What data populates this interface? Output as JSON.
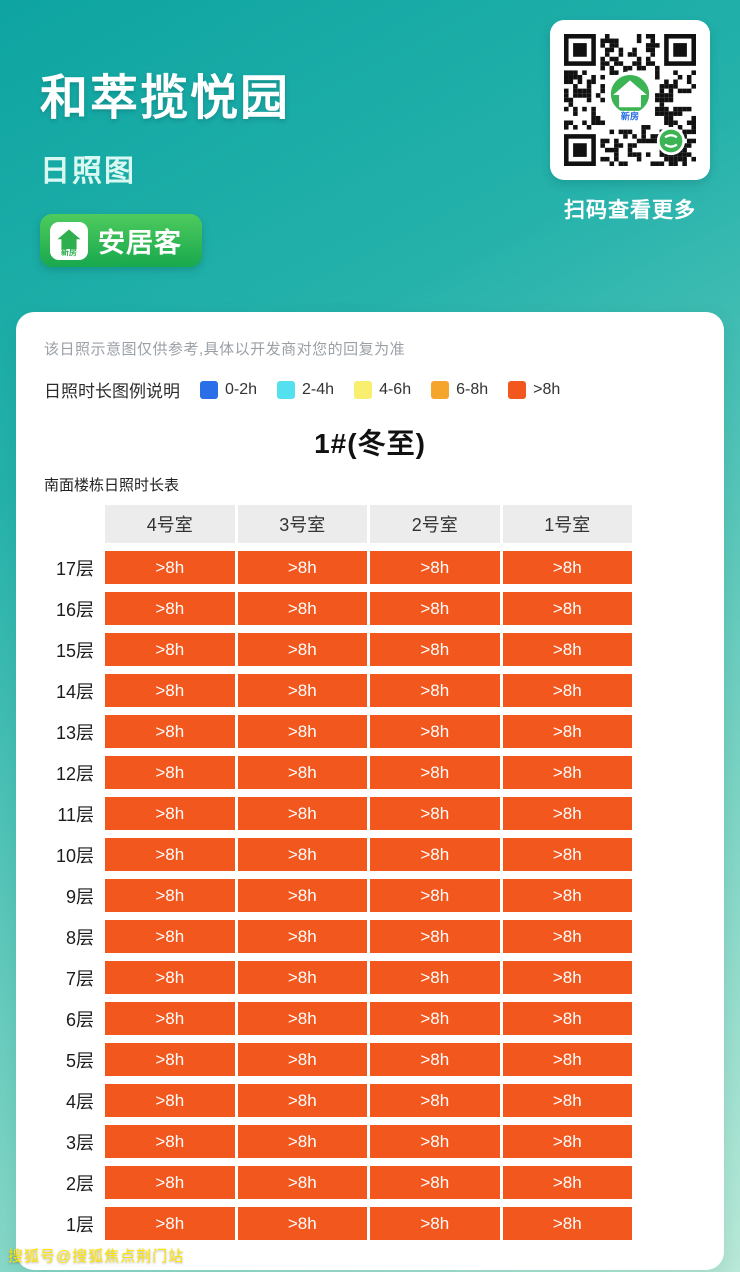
{
  "header": {
    "title": "和萃揽悦园",
    "subtitle": "日照图",
    "brand_name": "安居客",
    "brand_icon_label": "新房",
    "qr_caption": "扫码查看更多"
  },
  "card": {
    "disclaimer": "该日照示意图仅供参考,具体以开发商对您的回复为准",
    "legend_title": "日照时长图例说明"
  },
  "chart_data": {
    "type": "heatmap",
    "title": "1#(冬至)",
    "table_label": "南面楼栋日照时长表",
    "columns": [
      "4号室",
      "3号室",
      "2号室",
      "1号室"
    ],
    "rows": [
      "17层",
      "16层",
      "15层",
      "14层",
      "13层",
      "12层",
      "11层",
      "10层",
      "9层",
      "8层",
      "7层",
      "6层",
      "5层",
      "4层",
      "3层",
      "2层",
      "1层"
    ],
    "values": [
      [
        ">8h",
        ">8h",
        ">8h",
        ">8h"
      ],
      [
        ">8h",
        ">8h",
        ">8h",
        ">8h"
      ],
      [
        ">8h",
        ">8h",
        ">8h",
        ">8h"
      ],
      [
        ">8h",
        ">8h",
        ">8h",
        ">8h"
      ],
      [
        ">8h",
        ">8h",
        ">8h",
        ">8h"
      ],
      [
        ">8h",
        ">8h",
        ">8h",
        ">8h"
      ],
      [
        ">8h",
        ">8h",
        ">8h",
        ">8h"
      ],
      [
        ">8h",
        ">8h",
        ">8h",
        ">8h"
      ],
      [
        ">8h",
        ">8h",
        ">8h",
        ">8h"
      ],
      [
        ">8h",
        ">8h",
        ">8h",
        ">8h"
      ],
      [
        ">8h",
        ">8h",
        ">8h",
        ">8h"
      ],
      [
        ">8h",
        ">8h",
        ">8h",
        ">8h"
      ],
      [
        ">8h",
        ">8h",
        ">8h",
        ">8h"
      ],
      [
        ">8h",
        ">8h",
        ">8h",
        ">8h"
      ],
      [
        ">8h",
        ">8h",
        ">8h",
        ">8h"
      ],
      [
        ">8h",
        ">8h",
        ">8h",
        ">8h"
      ],
      [
        ">8h",
        ">8h",
        ">8h",
        ">8h"
      ]
    ],
    "legend": [
      {
        "label": "0-2h",
        "color": "#2a6fe8"
      },
      {
        "label": "2-4h",
        "color": "#55e0ef"
      },
      {
        "label": "4-6h",
        "color": "#f9ef6e"
      },
      {
        "label": "6-8h",
        "color": "#f5a52b"
      },
      {
        "label": ">8h",
        "color": "#f2571d"
      }
    ],
    "cell_text_color": "#ffffff"
  },
  "watermark": "搜狐号@搜狐焦点荆门站"
}
